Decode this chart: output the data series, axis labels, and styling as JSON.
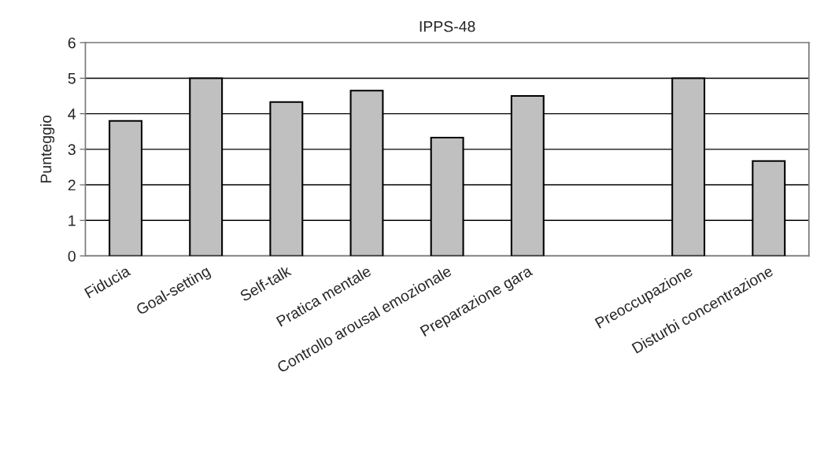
{
  "chart_data": {
    "type": "bar",
    "title": "IPPS-48",
    "ylabel": "Punteggio",
    "categories": [
      "Fiducia",
      "Goal-setting",
      "Self-talk",
      "Pratica mentale",
      "Controllo arousal emozionale",
      "Preparazione gara",
      null,
      "Preoccupazione",
      "Disturbi concentrazione"
    ],
    "values": [
      3.8,
      5,
      4.33,
      4.65,
      3.33,
      4.5,
      null,
      5,
      2.67
    ],
    "color": "#c0c0c0",
    "ylim": [
      0,
      6
    ],
    "yticks": [
      0,
      1,
      2,
      3,
      4,
      5,
      6
    ],
    "grid": "y"
  }
}
